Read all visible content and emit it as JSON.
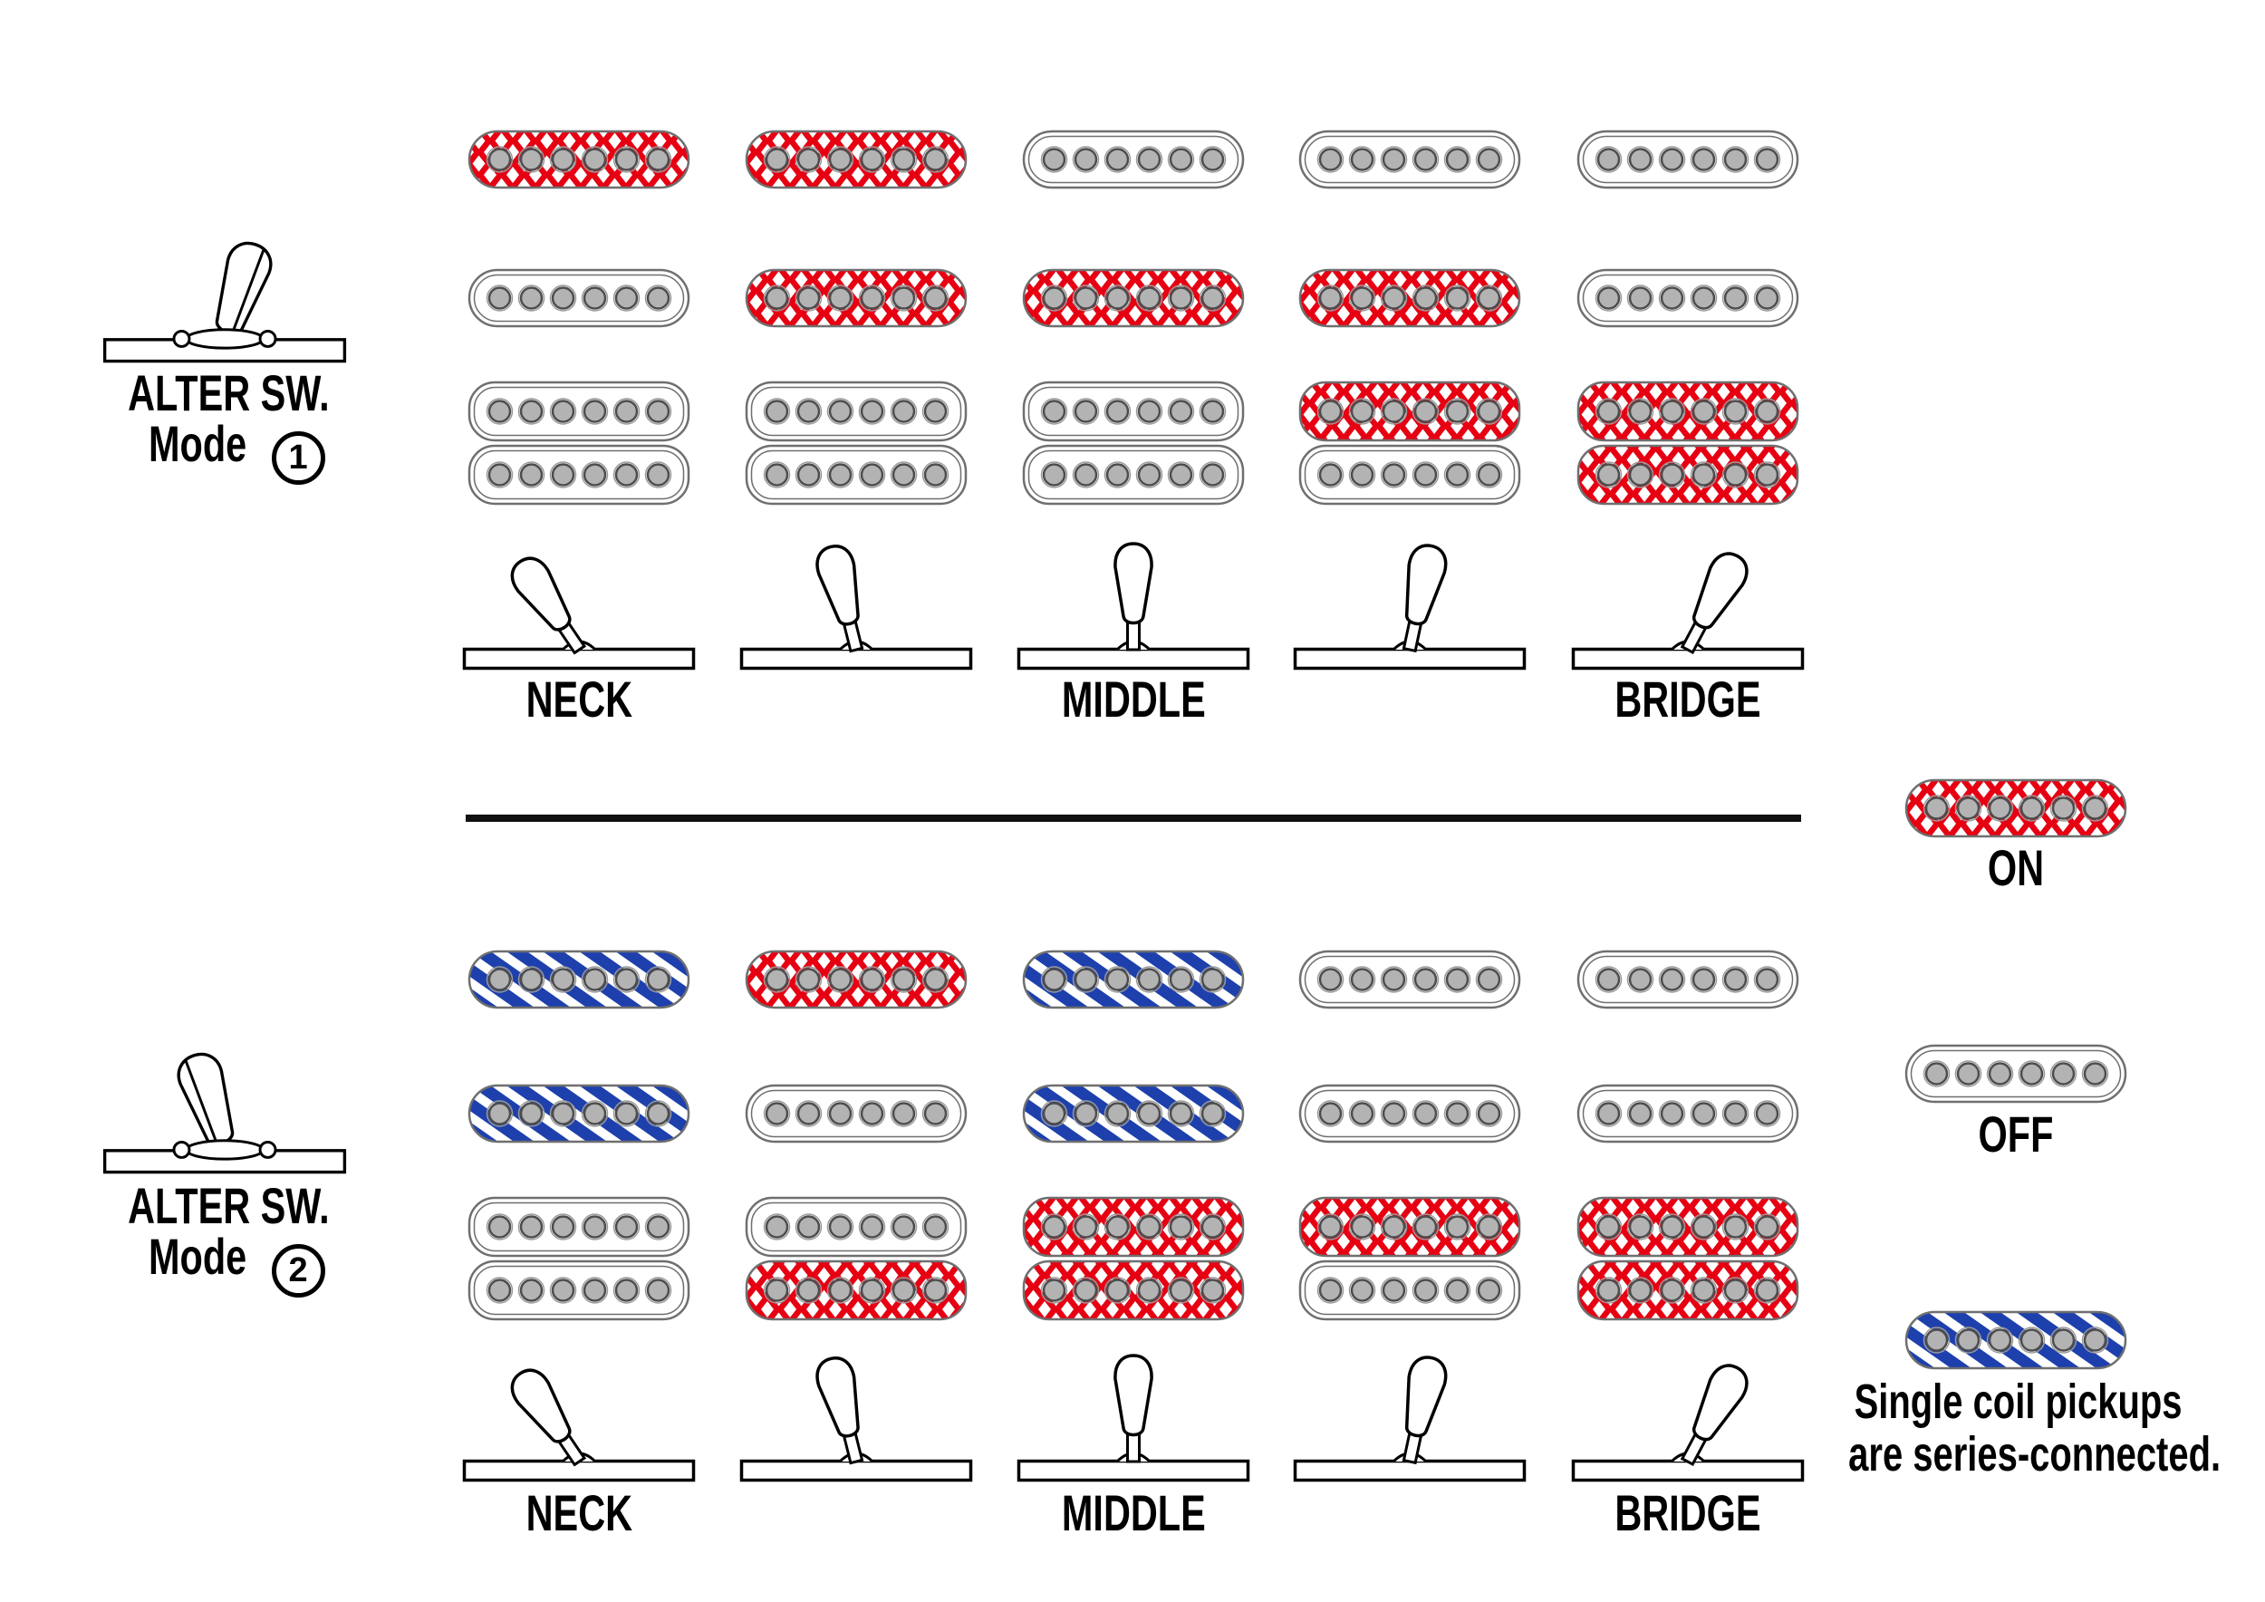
{
  "modes": [
    {
      "switch_label": "ALTER SW.",
      "mode_word": "Mode",
      "mode_number": "1",
      "lever_tilt": "right",
      "pickup_states": {
        "neck_single": [
          "on",
          "on",
          "off",
          "off",
          "off"
        ],
        "middle_single": [
          "off",
          "on",
          "on",
          "on",
          "off"
        ],
        "bridge_humbucker_top": [
          "off",
          "off",
          "off",
          "on",
          "on"
        ],
        "bridge_humbucker_bottom": [
          "off",
          "off",
          "off",
          "off",
          "on"
        ]
      }
    },
    {
      "switch_label": "ALTER SW.",
      "mode_word": "Mode",
      "mode_number": "2",
      "lever_tilt": "left",
      "pickup_states": {
        "neck_single": [
          "series",
          "on",
          "series",
          "off",
          "off"
        ],
        "middle_single": [
          "series",
          "off",
          "series",
          "off",
          "off"
        ],
        "bridge_humbucker_top": [
          "off",
          "off",
          "on",
          "on",
          "on"
        ],
        "bridge_humbucker_bottom": [
          "off",
          "on",
          "on",
          "off",
          "on"
        ]
      }
    }
  ],
  "position_labels": {
    "neck": "NECK",
    "middle": "MIDDLE",
    "bridge": "BRIDGE"
  },
  "switch_positions": [
    "1",
    "2",
    "3",
    "4",
    "5"
  ],
  "legend": {
    "on_label": "ON",
    "off_label": "OFF",
    "series_note_line1": "Single coil pickups",
    "series_note_line2": "are series-connected."
  },
  "colors": {
    "on_red": "#e60012",
    "series_blue": "#1d40ad",
    "pole_fill": "#b3b3b3",
    "pole_ring": "#4d4d4d",
    "pole_outer_ring": "#9a9a9a",
    "pickup_outline": "#6f6f6f",
    "line_black": "#000000",
    "divider": "#111111"
  }
}
